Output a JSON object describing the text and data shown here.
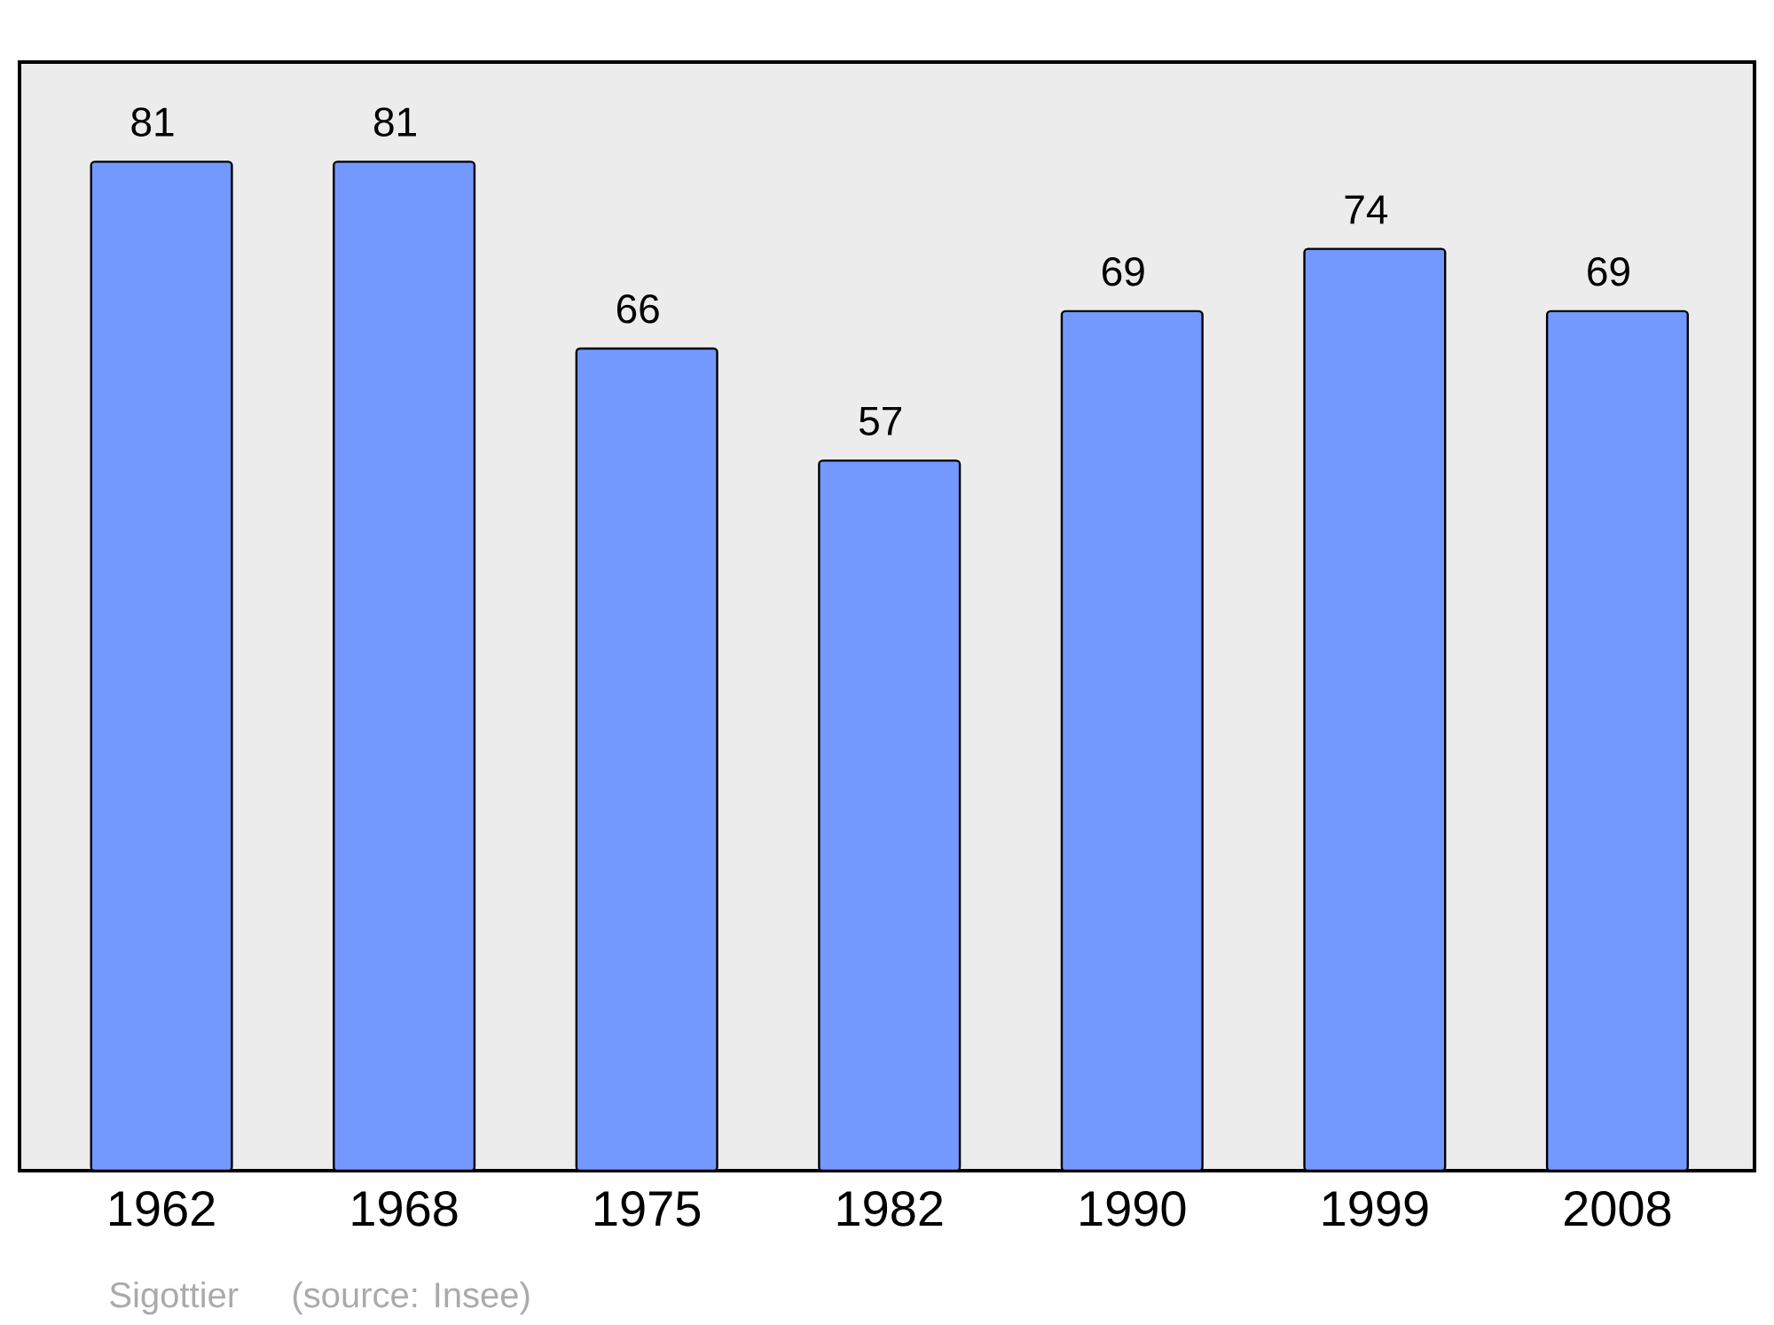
{
  "chart_data": {
    "type": "bar",
    "categories": [
      "1962",
      "1968",
      "1975",
      "1982",
      "1990",
      "1999",
      "2008"
    ],
    "values": [
      81,
      81,
      66,
      57,
      69,
      74,
      69
    ],
    "color": "#7399ff",
    "ylim": [
      0,
      89
    ],
    "tick_labels": "x",
    "data_labels": true,
    "annotations": [
      "Sigottier",
      "(source: Insee)"
    ]
  }
}
